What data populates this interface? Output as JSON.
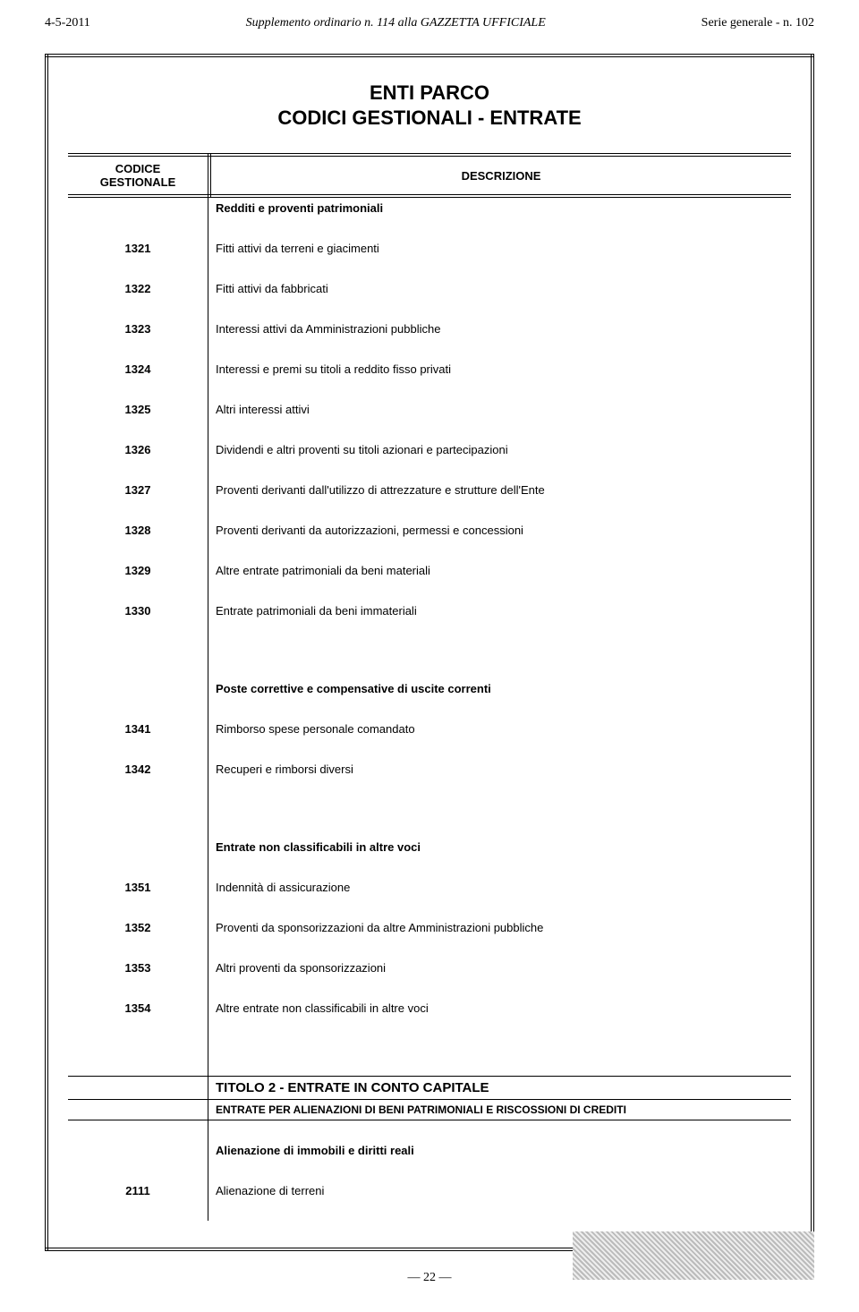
{
  "header": {
    "left": "4-5-2011",
    "center": "Supplemento ordinario n. 114 alla GAZZETTA UFFICIALE",
    "right": "Serie generale - n. 102"
  },
  "title_line1": "ENTI PARCO",
  "title_line2": "CODICI GESTIONALI - ENTRATE",
  "head": {
    "code_l1": "CODICE",
    "code_l2": "GESTIONALE",
    "desc": "DESCRIZIONE"
  },
  "sections": [
    {
      "heading": "Redditi e proventi patrimoniali",
      "rows": [
        {
          "code": "1321",
          "desc": "Fitti attivi da terreni e giacimenti"
        },
        {
          "code": "1322",
          "desc": "Fitti attivi da fabbricati"
        },
        {
          "code": "1323",
          "desc": "Interessi attivi da Amministrazioni pubbliche"
        },
        {
          "code": "1324",
          "desc": "Interessi e premi su  titoli a reddito fisso privati"
        },
        {
          "code": "1325",
          "desc": "Altri interessi attivi"
        },
        {
          "code": "1326",
          "desc": "Dividendi e altri proventi su titoli azionari e partecipazioni"
        },
        {
          "code": "1327",
          "desc": "Proventi derivanti dall'utilizzo di attrezzature e strutture dell'Ente"
        },
        {
          "code": "1328",
          "desc": "Proventi derivanti da autorizzazioni, permessi e concessioni"
        },
        {
          "code": "1329",
          "desc": "Altre entrate patrimoniali da beni materiali"
        },
        {
          "code": "1330",
          "desc": "Entrate patrimoniali da beni immateriali"
        }
      ]
    },
    {
      "heading": "Poste correttive e compensative di uscite correnti",
      "rows": [
        {
          "code": "1341",
          "desc": "Rimborso spese personale comandato"
        },
        {
          "code": "1342",
          "desc": "Recuperi e rimborsi diversi"
        }
      ]
    },
    {
      "heading": "Entrate non classificabili in altre voci",
      "rows": [
        {
          "code": "1351",
          "desc": "Indennità di assicurazione"
        },
        {
          "code": "1352",
          "desc": "Proventi da sponsorizzazioni da altre Amministrazioni pubbliche"
        },
        {
          "code": "1353",
          "desc": "Altri proventi da sponsorizzazioni"
        },
        {
          "code": "1354",
          "desc": "Altre entrate  non classificabili in altre voci"
        }
      ]
    }
  ],
  "titolo": {
    "title": "TITOLO 2 - ENTRATE IN CONTO CAPITALE",
    "sub_upper": "ENTRATE PER ALIENAZIONI DI BENI PATRIMONIALI  E RISCOSSIONI DI CREDITI",
    "sub_heading": "Alienazione di immobili e diritti reali",
    "rows": [
      {
        "code": "2111",
        "desc": "Alienazione di terreni"
      }
    ]
  },
  "page_number": "—  22  —"
}
